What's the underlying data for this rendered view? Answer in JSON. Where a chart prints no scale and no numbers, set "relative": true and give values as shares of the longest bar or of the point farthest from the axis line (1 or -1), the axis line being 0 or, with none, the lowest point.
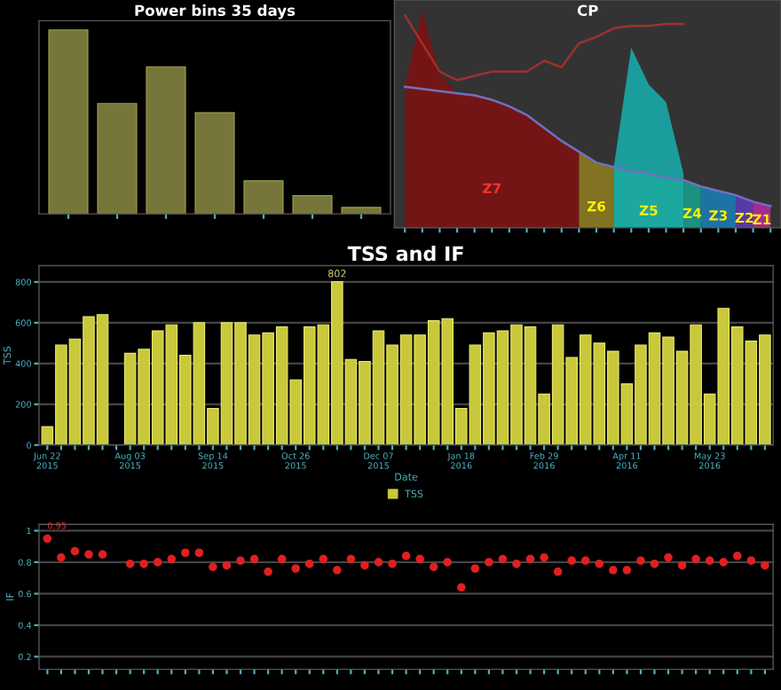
{
  "chart_data": [
    {
      "type": "bar",
      "title": "Power bins 35 days",
      "relative": true,
      "tick_labels": false,
      "categories": [
        null,
        null,
        null,
        null,
        null,
        null,
        null
      ],
      "series": [
        {
          "color": "#76763a",
          "values": [
            1,
            0.6,
            0.8,
            0.55,
            0.18,
            0.1,
            0.035
          ]
        }
      ]
    },
    {
      "type": "area",
      "title": "CP",
      "relative": true,
      "tick_labels": false,
      "categories": [
        null,
        null,
        null,
        null,
        null,
        null,
        null,
        null,
        null,
        null,
        null,
        null,
        null,
        null,
        null,
        null,
        null,
        null,
        null,
        null,
        null,
        null
      ],
      "series": [
        {
          "name": "Z7",
          "color": "#7a1212",
          "values": [
            0.65,
            1.0,
            0.71,
            0.62,
            0.61,
            0.59,
            0.56,
            0.52,
            0.46,
            0.4,
            0.35,
            null,
            null,
            null,
            null,
            null,
            null,
            null,
            null,
            null,
            null,
            null
          ]
        },
        {
          "name": "Z6",
          "color": "#8a7a20",
          "values": [
            null,
            null,
            null,
            null,
            null,
            null,
            null,
            null,
            null,
            null,
            0.35,
            0.3,
            0.28,
            null,
            null,
            null,
            null,
            null,
            null,
            null,
            null,
            null
          ]
        },
        {
          "name": "Z5",
          "color": "#3aa84a",
          "values": [
            null,
            null,
            null,
            null,
            null,
            null,
            null,
            null,
            null,
            null,
            null,
            null,
            0.28,
            0.26,
            0.25,
            0.23,
            0.22,
            null,
            null,
            null,
            null,
            null
          ]
        },
        {
          "name": "Z4",
          "color": "#1a9a8a",
          "values": [
            null,
            null,
            null,
            null,
            null,
            null,
            null,
            null,
            null,
            null,
            null,
            null,
            null,
            null,
            null,
            null,
            0.22,
            0.19,
            null,
            null,
            null,
            null
          ]
        },
        {
          "name": "Z3",
          "color": "#1a7ab0",
          "values": [
            null,
            null,
            null,
            null,
            null,
            null,
            null,
            null,
            null,
            null,
            null,
            null,
            null,
            null,
            null,
            null,
            null,
            0.19,
            0.17,
            0.15,
            null,
            null
          ]
        },
        {
          "name": "Z2",
          "color": "#5a3ab0",
          "values": [
            null,
            null,
            null,
            null,
            null,
            null,
            null,
            null,
            null,
            null,
            null,
            null,
            null,
            null,
            null,
            null,
            null,
            null,
            null,
            0.15,
            0.12,
            null
          ]
        },
        {
          "name": "Z1",
          "color": "#b02a9a",
          "values": [
            null,
            null,
            null,
            null,
            null,
            null,
            null,
            null,
            null,
            null,
            null,
            null,
            null,
            null,
            null,
            null,
            null,
            null,
            null,
            null,
            0.12,
            0.1
          ]
        },
        {
          "color": "#1aa8a8",
          "values": [
            null,
            null,
            null,
            null,
            null,
            null,
            null,
            null,
            null,
            null,
            null,
            null,
            0.28,
            0.83,
            0.66,
            0.58,
            0.25,
            null,
            null,
            null,
            null,
            null
          ]
        },
        {
          "type": "line",
          "color": "#a03030",
          "values": [
            0.98,
            0.85,
            0.72,
            0.68,
            0.7,
            0.72,
            0.72,
            0.72,
            0.77,
            0.74,
            0.85,
            0.88,
            0.92,
            0.93,
            0.93,
            0.94,
            0.94,
            null,
            null,
            null,
            null,
            null
          ]
        },
        {
          "type": "line",
          "color": "#7070c0",
          "values": [
            0.65,
            0.64,
            0.63,
            0.62,
            0.61,
            0.59,
            0.56,
            0.52,
            0.46,
            0.4,
            0.35,
            0.3,
            0.28,
            0.26,
            0.25,
            0.23,
            0.22,
            0.19,
            0.17,
            0.15,
            0.12,
            0.1
          ]
        }
      ]
    },
    {
      "type": "bar",
      "title": "TSS and IF",
      "xlabel": "Date",
      "ylabel": "TSS",
      "legend": "bottom",
      "grid": "y",
      "categories": [
        "Jun 22\n2015",
        null,
        null,
        null,
        null,
        null,
        "Aug 03\n2015",
        null,
        null,
        null,
        null,
        null,
        "Sep 14\n2015",
        null,
        null,
        null,
        null,
        null,
        "Oct 26\n2015",
        null,
        null,
        null,
        null,
        null,
        "Dec 07\n2015",
        null,
        null,
        null,
        null,
        null,
        "Jan 18\n2016",
        null,
        null,
        null,
        null,
        null,
        "Feb 29\n2016",
        null,
        null,
        null,
        null,
        null,
        "Apr 11\n2016",
        null,
        null,
        null,
        null,
        null,
        "May 23\n2016",
        null,
        null,
        null,
        null
      ],
      "ylim": [
        0,
        880
      ],
      "yticks": [
        0,
        200,
        400,
        600,
        800
      ],
      "series": [
        {
          "name": "TSS",
          "color": "#c8c83a",
          "values": [
            90,
            490,
            520,
            630,
            640,
            null,
            450,
            470,
            560,
            590,
            440,
            600,
            180,
            600,
            600,
            540,
            550,
            580,
            320,
            580,
            590,
            802,
            420,
            410,
            560,
            490,
            540,
            540,
            610,
            620,
            180,
            490,
            550,
            560,
            590,
            580,
            250,
            590,
            430,
            540,
            500,
            460,
            300,
            490,
            550,
            530,
            460,
            590,
            250,
            670,
            580,
            510,
            540
          ],
          "value_labels": [
            null,
            null,
            null,
            null,
            null,
            null,
            null,
            null,
            null,
            null,
            null,
            null,
            null,
            null,
            null,
            null,
            null,
            null,
            null,
            null,
            null,
            "802",
            null,
            null,
            null,
            null,
            null,
            null,
            null,
            null,
            null,
            null,
            null,
            null,
            null,
            null,
            null,
            null,
            null,
            null,
            null,
            null,
            null,
            null,
            null,
            null,
            null,
            null,
            null,
            null,
            null,
            null,
            null
          ]
        }
      ]
    },
    {
      "type": "scatter",
      "ylabel": "IF",
      "grid": "y",
      "marker": "circle",
      "tick_labels": "y",
      "categories": [
        null,
        null,
        null,
        null,
        null,
        null,
        null,
        null,
        null,
        null,
        null,
        null,
        null,
        null,
        null,
        null,
        null,
        null,
        null,
        null,
        null,
        null,
        null,
        null,
        null,
        null,
        null,
        null,
        null,
        null,
        null,
        null,
        null,
        null,
        null,
        null,
        null,
        null,
        null,
        null,
        null,
        null,
        null,
        null,
        null,
        null,
        null,
        null,
        null,
        null,
        null,
        null,
        null
      ],
      "ylim": [
        0.12,
        1.04
      ],
      "yticks": [
        0.2,
        0.4,
        0.6,
        0.8,
        1
      ],
      "series": [
        {
          "color": "#e02020",
          "values": [
            0.95,
            0.83,
            0.87,
            0.85,
            0.85,
            null,
            0.79,
            0.79,
            0.8,
            0.82,
            0.86,
            0.86,
            0.77,
            0.78,
            0.81,
            0.82,
            0.74,
            0.82,
            0.76,
            0.79,
            0.82,
            0.75,
            0.82,
            0.78,
            0.8,
            0.79,
            0.84,
            0.82,
            0.77,
            0.8,
            0.64,
            0.76,
            0.8,
            0.82,
            0.79,
            0.82,
            0.83,
            0.74,
            0.81,
            0.81,
            0.79,
            0.75,
            0.75,
            0.81,
            0.79,
            0.83,
            0.78,
            0.82,
            0.81,
            0.8,
            0.84,
            0.81,
            0.78
          ],
          "value_labels": [
            "0.95",
            null,
            null,
            null,
            null,
            null,
            null,
            null,
            null,
            null,
            null,
            null,
            null,
            null,
            null,
            null,
            null,
            null,
            null,
            null,
            null,
            null,
            null,
            null,
            null,
            null,
            null,
            null,
            null,
            null,
            null,
            null,
            null,
            null,
            null,
            null,
            null,
            null,
            null,
            null,
            null,
            null,
            null,
            null,
            null,
            null,
            null,
            null,
            null,
            null,
            null,
            null,
            null
          ]
        }
      ]
    }
  ]
}
